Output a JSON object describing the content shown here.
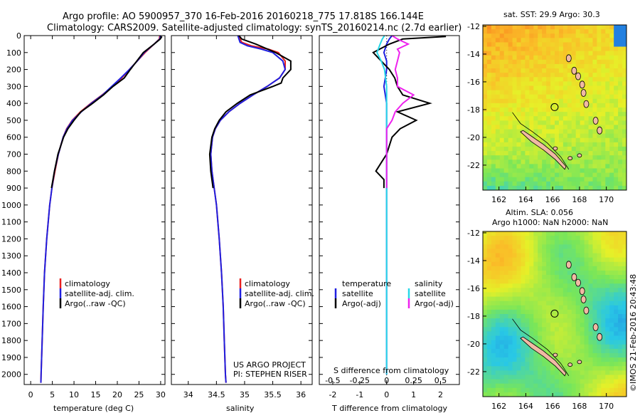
{
  "header": {
    "title_line1": "Argo profile: AO 5900957_370 16-Feb-2016 20160218_775 17.818S 166.144E",
    "title_line2": "Climatology: CARS2009. Satellite-adjusted climatology: synTS_20160214.nc (2.7d earlier)"
  },
  "credit": "©IMOS 21-Feb-2016 20:43:48",
  "colors": {
    "climatology": "#e8201f",
    "satellite": "#1f1fe0",
    "argo": "#000000",
    "sal_sat": "#28d8e8",
    "sal_argo": "#ee22ee"
  },
  "chart_data": [
    {
      "type": "line",
      "id": "temperature",
      "xlabel": "temperature (deg C)",
      "xlim": [
        -1.5,
        31
      ],
      "xticks": [
        0,
        5,
        10,
        15,
        20,
        25,
        30
      ],
      "ylim": [
        2060,
        0
      ],
      "yticks": [
        0,
        100,
        200,
        300,
        400,
        500,
        600,
        700,
        800,
        900,
        1000,
        1100,
        1200,
        1300,
        1400,
        1500,
        1600,
        1700,
        1800,
        1900,
        2000
      ],
      "legend": [
        "climatology",
        "satellite-adj. clim.",
        "Argo(..raw -QC)"
      ],
      "series": [
        {
          "name": "climatology",
          "depth": [
            0,
            20,
            50,
            100,
            150,
            200,
            250,
            300,
            350,
            400,
            450,
            500,
            550,
            600,
            700,
            800,
            900,
            1000,
            1200,
            1400,
            1600,
            1800,
            2000,
            2050
          ],
          "values": [
            29.8,
            29.7,
            28.5,
            26.4,
            24.6,
            22.8,
            21.0,
            18.9,
            16.5,
            13.9,
            11.5,
            9.6,
            8.3,
            7.5,
            6.4,
            5.6,
            4.9,
            4.4,
            3.7,
            3.2,
            2.9,
            2.65,
            2.4,
            2.35
          ]
        },
        {
          "name": "satellite-adj. clim.",
          "depth": [
            0,
            20,
            50,
            100,
            150,
            200,
            250,
            300,
            350,
            400,
            450,
            500,
            550,
            600,
            700,
            800,
            900,
            1000,
            1200,
            1400,
            1600,
            1800,
            2000,
            2050
          ],
          "values": [
            30.0,
            29.8,
            28.5,
            26.2,
            24.6,
            22.8,
            20.8,
            18.7,
            16.6,
            14.0,
            11.7,
            9.7,
            8.4,
            7.5,
            6.4,
            5.5,
            4.9,
            4.4,
            3.7,
            3.2,
            2.9,
            2.65,
            2.4,
            2.35
          ]
        },
        {
          "name": "Argo(..raw -QC)",
          "depth": [
            5,
            20,
            50,
            100,
            150,
            200,
            250,
            300,
            350,
            400,
            450,
            500,
            550,
            600,
            700,
            800,
            900
          ],
          "values": [
            30.3,
            29.9,
            28.5,
            26.0,
            24.5,
            23.0,
            21.6,
            19.0,
            16.8,
            14.3,
            11.6,
            10.0,
            8.6,
            7.6,
            6.3,
            5.5,
            4.8
          ]
        }
      ]
    },
    {
      "type": "line",
      "id": "salinity",
      "xlabel": "salinity",
      "xlim": [
        33.7,
        36.2
      ],
      "xticks": [
        34,
        34.5,
        35,
        35.5,
        36
      ],
      "ylim": [
        2060,
        0
      ],
      "legend": [
        "climatology",
        "satellite-adj. clim.",
        "Argo(..raw -QC)"
      ],
      "annotation": [
        "US ARGO PROJECT",
        "PI: STEPHEN RISER"
      ],
      "series": [
        {
          "name": "climatology",
          "depth": [
            0,
            20,
            40,
            60,
            80,
            100,
            150,
            200,
            250,
            300,
            350,
            400,
            450,
            500,
            550,
            600,
            700,
            800,
            900,
            1000,
            1200,
            1400,
            1600,
            1800,
            2000,
            2050
          ],
          "values": [
            34.9,
            34.92,
            34.95,
            35.12,
            35.42,
            35.6,
            35.72,
            35.72,
            35.62,
            35.4,
            35.15,
            34.92,
            34.72,
            34.57,
            34.48,
            34.43,
            34.4,
            34.42,
            34.46,
            34.5,
            34.55,
            34.59,
            34.62,
            34.64,
            34.66,
            34.67
          ]
        },
        {
          "name": "satellite-adj. clim.",
          "depth": [
            0,
            20,
            40,
            60,
            80,
            100,
            150,
            200,
            250,
            300,
            350,
            400,
            450,
            500,
            550,
            600,
            700,
            800,
            900,
            1000,
            1200,
            1400,
            1600,
            1800,
            2000,
            2050
          ],
          "values": [
            34.88,
            34.9,
            34.92,
            35.05,
            35.3,
            35.5,
            35.68,
            35.72,
            35.62,
            35.4,
            35.15,
            34.92,
            34.72,
            34.57,
            34.48,
            34.43,
            34.4,
            34.42,
            34.46,
            34.5,
            34.55,
            34.59,
            34.62,
            34.64,
            34.66,
            34.67
          ]
        },
        {
          "name": "Argo(..raw -QC)",
          "depth": [
            0,
            20,
            50,
            100,
            150,
            200,
            250,
            280,
            300,
            350,
            400,
            450,
            500,
            550,
            600,
            700,
            800,
            900
          ],
          "values": [
            34.9,
            34.95,
            35.2,
            35.55,
            35.82,
            35.82,
            35.68,
            35.65,
            35.5,
            35.1,
            34.87,
            34.67,
            34.55,
            34.47,
            34.42,
            34.38,
            34.4,
            34.44
          ]
        }
      ]
    },
    {
      "type": "line",
      "id": "difference",
      "xlabel_bottom": "T difference from climatology",
      "xlabel_top": "S difference from climatology",
      "xlim": [
        -2.5,
        2.7
      ],
      "xticks": [
        -2,
        -1,
        0,
        1,
        2
      ],
      "top_ticks": [
        -0.5,
        -0.25,
        0,
        0.25,
        0.5
      ],
      "ylim": [
        2060,
        0
      ],
      "legend_temperature": {
        "heading": "temperature",
        "items": [
          "satellite",
          "Argo(-adj)"
        ]
      },
      "legend_salinity": {
        "heading": "salinity",
        "items": [
          "satellite",
          "Argo(-adj)"
        ]
      },
      "series": [
        {
          "name": "T satellite",
          "depth": [
            0,
            20,
            50,
            100,
            150,
            200,
            300,
            400,
            500,
            600,
            800,
            1000,
            1500,
            2000
          ],
          "values": [
            0.2,
            0.1,
            0.0,
            -0.1,
            0.0,
            0.0,
            -0.1,
            0.0,
            0.0,
            0.0,
            0.0,
            0.0,
            0.0,
            0.0
          ]
        },
        {
          "name": "T Argo(-adj)",
          "depth": [
            5,
            20,
            50,
            100,
            150,
            200,
            250,
            300,
            350,
            400,
            450,
            500,
            550,
            600,
            700,
            750,
            800,
            850,
            900
          ],
          "values": [
            2.2,
            0.6,
            0.1,
            -0.5,
            -0.2,
            0.1,
            0.3,
            0.4,
            0.6,
            1.6,
            0.4,
            1.1,
            0.5,
            0.2,
            0.0,
            -0.2,
            -0.4,
            -0.1,
            -0.1
          ]
        },
        {
          "name": "S satellite",
          "depth": [
            0,
            20,
            50,
            100,
            150,
            200,
            300,
            400,
            500,
            600,
            800,
            1000,
            1500,
            2000
          ],
          "values": [
            -0.02,
            -0.04,
            -0.06,
            -0.09,
            -0.05,
            -0.02,
            0.0,
            0.0,
            0.0,
            0.0,
            0.0,
            0.0,
            0.0,
            0.0
          ]
        },
        {
          "name": "S Argo(-adj)",
          "depth": [
            0,
            20,
            50,
            80,
            100,
            150,
            200,
            250,
            300,
            350,
            400,
            450,
            500,
            550,
            600,
            700,
            800,
            900
          ],
          "values": [
            0.05,
            0.1,
            0.2,
            0.1,
            0.12,
            0.1,
            0.08,
            0.1,
            0.1,
            0.25,
            0.15,
            0.08,
            0.05,
            0.0,
            0.0,
            0.0,
            0.0,
            0.0
          ]
        }
      ]
    },
    {
      "type": "heatmap",
      "id": "sst-map",
      "title": "sat. SST: 29.9 Argo: 30.3",
      "xlim": [
        160.8,
        171.5
      ],
      "ylim": [
        -23.8,
        -11.9
      ],
      "xticks": [
        162,
        164,
        166,
        168,
        170
      ],
      "yticks": [
        -12,
        -14,
        -16,
        -18,
        -20,
        -22
      ],
      "argo_position": [
        166.144,
        -17.818
      ]
    },
    {
      "type": "heatmap",
      "id": "sla-map",
      "title_line1": "Altim. SLA: 0.056",
      "title_line2": "Argo h1000: NaN h2000: NaN",
      "xlim": [
        160.8,
        171.5
      ],
      "ylim": [
        -23.8,
        -11.9
      ],
      "xticks": [
        162,
        164,
        166,
        168,
        170
      ],
      "yticks": [
        -12,
        -14,
        -16,
        -18,
        -20,
        -22
      ],
      "argo_position": [
        166.144,
        -17.818
      ]
    }
  ]
}
